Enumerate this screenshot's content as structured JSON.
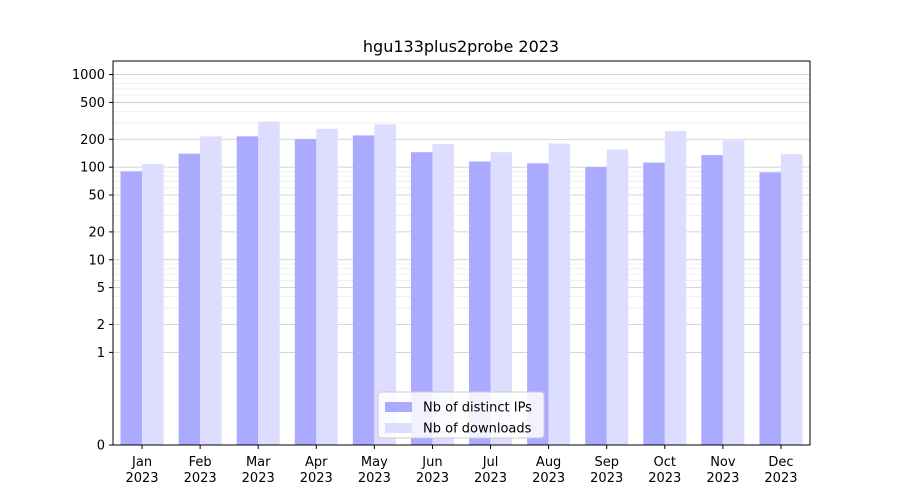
{
  "chart_data": {
    "type": "bar",
    "title": "hgu133plus2probe 2023",
    "xlabel": "",
    "ylabel": "",
    "categories": [
      "Jan\n2023",
      "Feb\n2023",
      "Mar\n2023",
      "Apr\n2023",
      "May\n2023",
      "Jun\n2023",
      "Jul\n2023",
      "Aug\n2023",
      "Sep\n2023",
      "Oct\n2023",
      "Nov\n2023",
      "Dec\n2023"
    ],
    "series": [
      {
        "name": "Nb of distinct IPs",
        "color": "#aaaaff",
        "values": [
          90,
          140,
          215,
          200,
          220,
          145,
          115,
          110,
          100,
          112,
          135,
          88
        ]
      },
      {
        "name": "Nb of downloads",
        "color": "#ddddff",
        "values": [
          108,
          215,
          310,
          260,
          290,
          178,
          145,
          180,
          155,
          245,
          195,
          138
        ]
      }
    ],
    "y_scale": "symlog",
    "ylim": [
      0,
      1400
    ],
    "y_ticks": [
      0,
      1,
      2,
      5,
      10,
      20,
      50,
      100,
      200,
      500,
      1000
    ],
    "y_minor_ticks": [
      3,
      4,
      6,
      7,
      8,
      9,
      30,
      40,
      60,
      70,
      80,
      90,
      300,
      400,
      600,
      700,
      800,
      900
    ],
    "grid": true,
    "legend_position": "bottom-center"
  }
}
